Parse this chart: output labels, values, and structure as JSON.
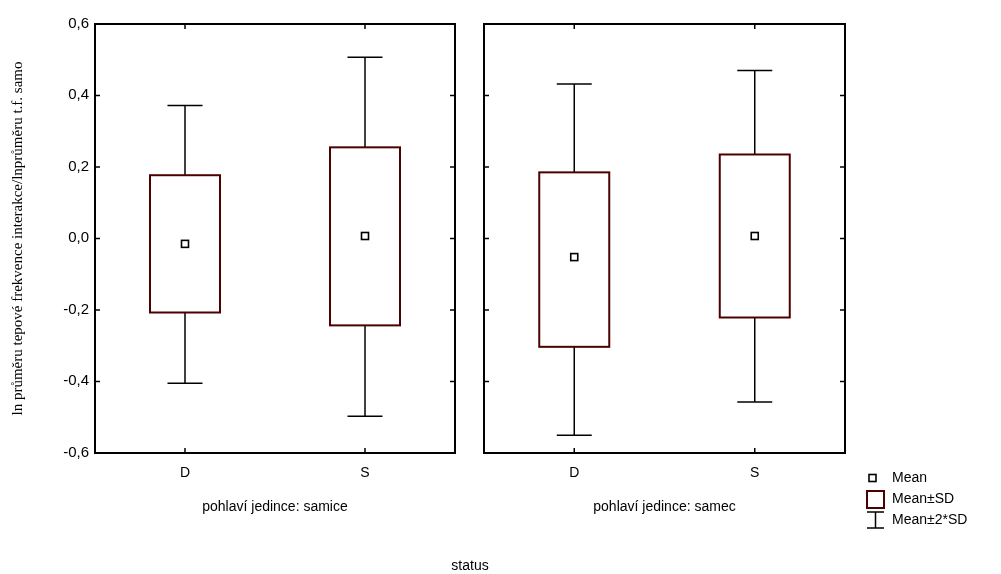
{
  "chart_data": [
    {
      "type": "box",
      "title": "pohlaví jedince: samice",
      "xlabel": "status",
      "ylabel": "ln průměru tepové frekvence interakce/lnprůměru t.f. samo",
      "categories": [
        "D",
        "S"
      ],
      "ylim": [
        -0.6,
        0.6
      ],
      "yticks": [
        {
          "value": -0.6,
          "label": "-0,6"
        },
        {
          "value": -0.4,
          "label": "-0,4"
        },
        {
          "value": -0.2,
          "label": "-0,2"
        },
        {
          "value": 0,
          "label": "0,0"
        },
        {
          "value": 0.2,
          "label": "0,2"
        },
        {
          "value": 0.4,
          "label": "0,4"
        },
        {
          "value": 0.6,
          "label": "0,6"
        }
      ],
      "series": [
        {
          "color": "#4d0000",
          "boxes": [
            {
              "low": -0.405,
              "q1": -0.207,
              "median": -0.015,
              "q3": 0.177,
              "high": 0.372
            },
            {
              "low": -0.497,
              "q1": -0.243,
              "median": 0.007,
              "q3": 0.255,
              "high": 0.507
            }
          ]
        }
      ]
    },
    {
      "type": "box",
      "title": "pohlaví jedince: samec",
      "categories": [
        "D",
        "S"
      ],
      "ylim": [
        -0.6,
        0.6
      ],
      "yticks": [
        {
          "value": -0.6,
          "label": null
        },
        {
          "value": -0.4,
          "label": null
        },
        {
          "value": -0.2,
          "label": null
        },
        {
          "value": 0,
          "label": null
        },
        {
          "value": 0.2,
          "label": null
        },
        {
          "value": 0.4,
          "label": null
        },
        {
          "value": 0.6,
          "label": null
        }
      ],
      "tick_labels": "x",
      "annotations": [
        "Mean",
        "Mean±SD",
        "Mean±2*SD"
      ],
      "series": [
        {
          "color": "#4d0000",
          "boxes": [
            {
              "low": -0.55,
              "q1": -0.303,
              "median": -0.052,
              "q3": 0.185,
              "high": 0.432
            },
            {
              "low": -0.457,
              "q1": -0.221,
              "median": 0.007,
              "q3": 0.235,
              "high": 0.47
            }
          ]
        }
      ]
    }
  ]
}
